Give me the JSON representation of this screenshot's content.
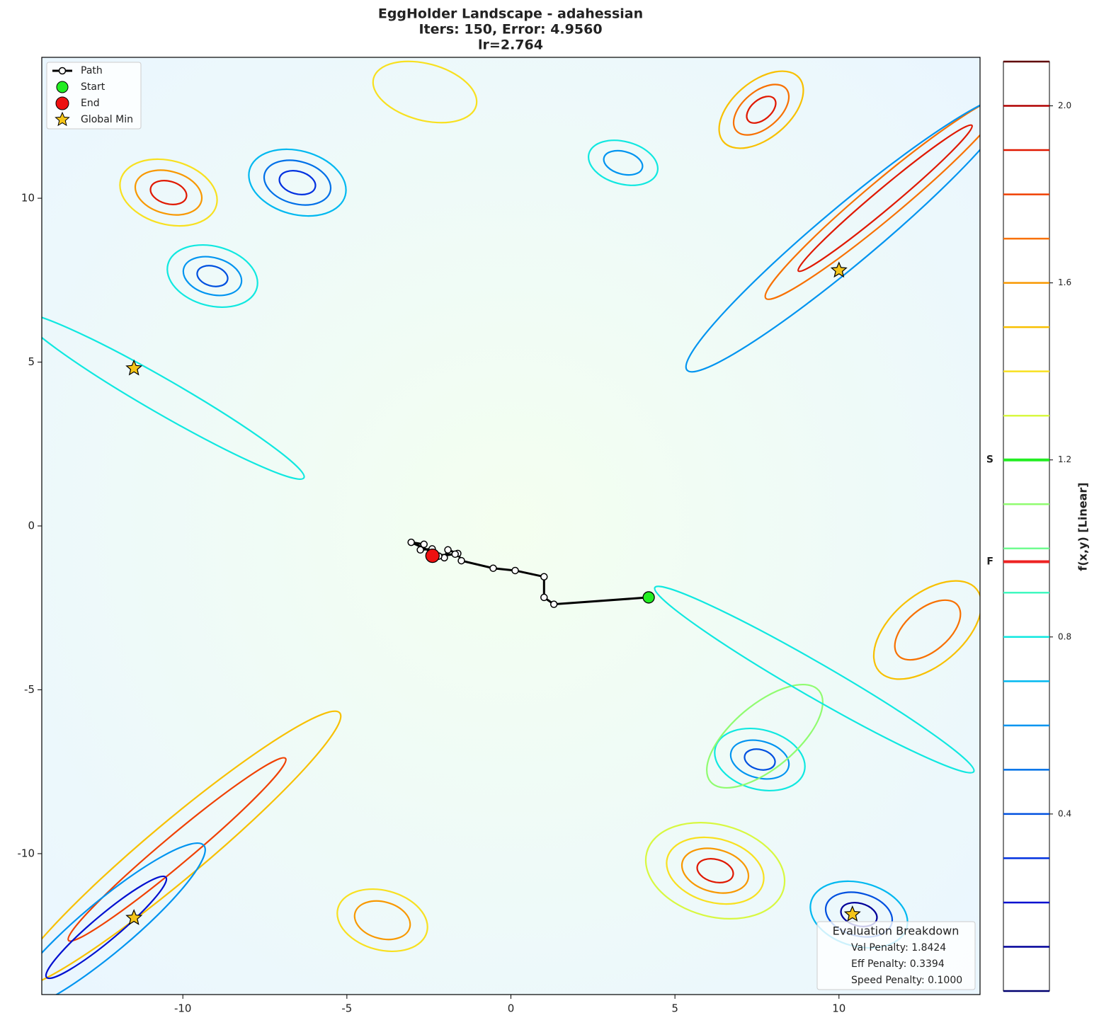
{
  "chart_data": {
    "type": "contour",
    "title": [
      "EggHolder Landscape - adahessian",
      "Iters: 150, Error: 4.9560",
      "lr=2.764"
    ],
    "xlim": [
      -14.3,
      14.3
    ],
    "ylim": [
      -14.3,
      14.3
    ],
    "xticks": [
      -10,
      -5,
      0,
      5,
      10
    ],
    "yticks": [
      -10,
      -5,
      0,
      5,
      10
    ],
    "path": {
      "name": "Path",
      "color": "#000000",
      "x": [
        4.2,
        1.31,
        1.01,
        1.01,
        0.13,
        -0.54,
        -1.51,
        -1.62,
        -1.92,
        -2.03,
        -3.04,
        -2.65,
        -2.76,
        -2.4,
        -2.2,
        -1.7,
        -2.39
      ],
      "y": [
        -2.18,
        -2.39,
        -2.18,
        -1.55,
        -1.36,
        -1.29,
        -1.06,
        -0.84,
        -0.73,
        -0.97,
        -0.5,
        -0.56,
        -0.73,
        -0.7,
        -0.92,
        -0.86,
        -0.91
      ]
    },
    "start": {
      "name": "Start",
      "color": "#22ee22",
      "x": 4.2,
      "y": -2.18
    },
    "end": {
      "name": "End",
      "color": "#ee1111",
      "x": -2.39,
      "y": -0.91
    },
    "global_min": {
      "name": "Global Min",
      "color": "#f5c518",
      "x": [
        -11.49,
        10.0,
        -11.49,
        10.41
      ],
      "y": [
        4.81,
        7.8,
        -11.96,
        -11.85
      ]
    },
    "legend": "upper left",
    "colorbar": {
      "label": "f(x,y) [Linear]",
      "ylim": [
        0,
        2.1
      ],
      "yticks": [
        0.4,
        0.8,
        1.2,
        1.6,
        {
          "value": 2,
          "label": "2.0"
        }
      ],
      "levels": [
        {
          "value": 0,
          "color": "#000070"
        },
        {
          "value": 0.1,
          "color": "#00009a"
        },
        {
          "value": 0.2,
          "color": "#0010d0"
        },
        {
          "value": 0.3,
          "color": "#0030e0"
        },
        {
          "value": 0.4,
          "color": "#0050e0"
        },
        {
          "value": 0.5,
          "color": "#0070e8"
        },
        {
          "value": 0.6,
          "color": "#0094f0"
        },
        {
          "value": 0.7,
          "color": "#00b8f0"
        },
        {
          "value": 0.8,
          "color": "#10e8e0"
        },
        {
          "value": 0.9,
          "color": "#40f8c0"
        },
        {
          "value": 1.0,
          "color": "#70fc90"
        },
        {
          "value": 1.1,
          "color": "#90fc70"
        },
        {
          "value": 1.2,
          "color": "#b0fc50"
        },
        {
          "value": 1.3,
          "color": "#d8f840"
        },
        {
          "value": 1.4,
          "color": "#f8e020"
        },
        {
          "value": 1.5,
          "color": "#f8c000"
        },
        {
          "value": 1.6,
          "color": "#f89800"
        },
        {
          "value": 1.7,
          "color": "#f87000"
        },
        {
          "value": 1.8,
          "color": "#f04000"
        },
        {
          "value": 1.9,
          "color": "#e01800"
        },
        {
          "value": 2.0,
          "color": "#b00000"
        },
        {
          "value": 2.1,
          "color": "#600000"
        }
      ],
      "markers": [
        {
          "label": "S",
          "value": 1.2,
          "color": "#22ee22"
        },
        {
          "label": "F",
          "value": 0.97,
          "color": "#ee2222"
        }
      ]
    },
    "breakdown": {
      "title": "Evaluation Breakdown",
      "lines": [
        "Val Penalty: 1.8424",
        "Eff Penalty: 0.3394",
        "Speed Penalty: 0.1000"
      ]
    }
  }
}
